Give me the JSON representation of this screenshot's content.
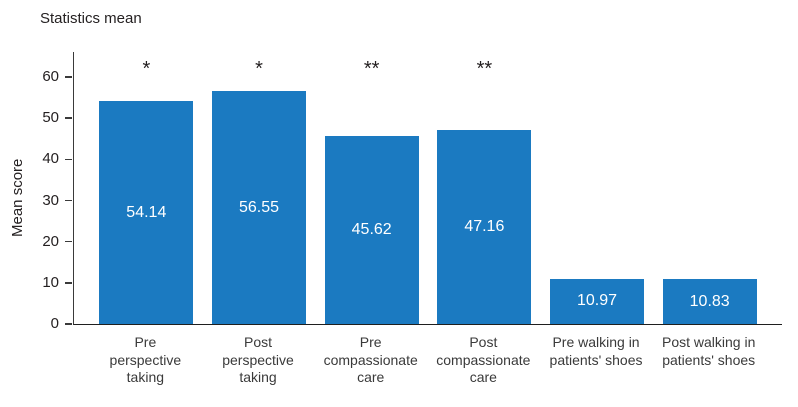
{
  "title": "Statistics mean",
  "chart_data": {
    "type": "bar",
    "title": "Statistics mean",
    "xlabel": "",
    "ylabel": "Mean score",
    "categories": [
      "Pre perspective taking",
      "Post perspective taking",
      "Pre compassionate care",
      "Post compassionate care",
      "Pre walking in patients' shoes",
      "Post walking in patients' shoes"
    ],
    "category_display_lines": [
      "Pre\nperspective\ntaking",
      "Post\nperspective\ntaking",
      "Pre\ncompassionate\ncare",
      "Post\ncompassionate\ncare",
      "Pre walking in\npatients' shoes",
      "Post walking in\npatients' shoes"
    ],
    "values": [
      54.14,
      56.55,
      45.62,
      47.16,
      10.97,
      10.83
    ],
    "value_labels": [
      "54.14",
      "56.55",
      "45.62",
      "47.16",
      "10.97",
      "10.83"
    ],
    "annotations": [
      "*",
      "*",
      "**",
      "**",
      "",
      ""
    ],
    "yticks": [
      0,
      10,
      20,
      30,
      40,
      50,
      60
    ],
    "ylim": [
      0,
      66
    ],
    "grid": false,
    "legend": false,
    "bar_color": "#1b7ac1",
    "value_label_color": "#ffffff",
    "axis_color": "#3a3a3a",
    "text_color": "#231f20"
  }
}
